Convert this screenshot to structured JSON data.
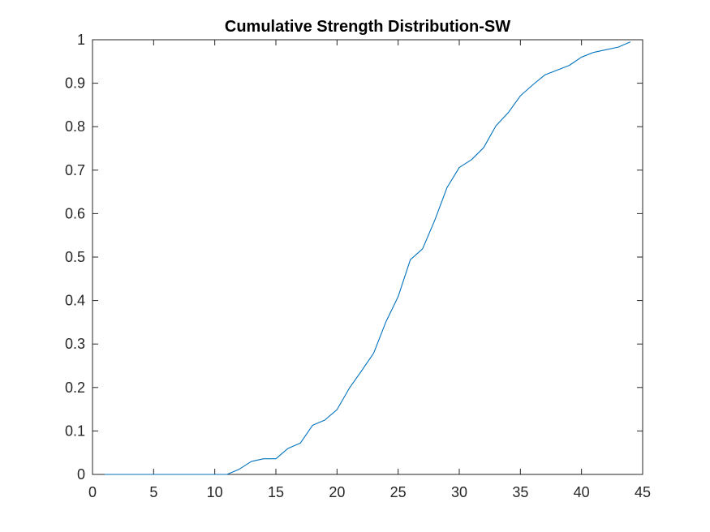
{
  "chart_data": {
    "type": "line",
    "title": "Cumulative Strength Distribution-SW",
    "xlabel": "",
    "ylabel": "",
    "xlim": [
      0,
      45
    ],
    "ylim": [
      0,
      1
    ],
    "x_ticks": [
      0,
      5,
      10,
      15,
      20,
      25,
      30,
      35,
      40,
      45
    ],
    "y_ticks": [
      0,
      0.1,
      0.2,
      0.3,
      0.4,
      0.5,
      0.6,
      0.7,
      0.8,
      0.9,
      1
    ],
    "grid": false,
    "legend": "none",
    "series": [
      {
        "color": "#0072BD",
        "x": [
          1,
          2,
          3,
          4,
          5,
          6,
          7,
          8,
          9,
          10,
          11,
          12,
          13,
          14,
          15,
          16,
          17,
          18,
          19,
          20,
          21,
          22,
          23,
          24,
          25,
          26,
          27,
          28,
          29,
          30,
          31,
          32,
          33,
          34,
          35,
          36,
          37,
          38,
          39,
          40,
          41,
          42,
          43,
          44
        ],
        "y": [
          0,
          0,
          0,
          0,
          0,
          0,
          0,
          0,
          0,
          0,
          0,
          0.012,
          0.03,
          0.036,
          0.036,
          0.06,
          0.072,
          0.113,
          0.125,
          0.149,
          0.198,
          0.238,
          0.279,
          0.351,
          0.409,
          0.494,
          0.519,
          0.585,
          0.66,
          0.706,
          0.724,
          0.752,
          0.802,
          0.832,
          0.871,
          0.896,
          0.919,
          0.93,
          0.941,
          0.96,
          0.971,
          0.977,
          0.983,
          0.995
        ]
      }
    ]
  }
}
